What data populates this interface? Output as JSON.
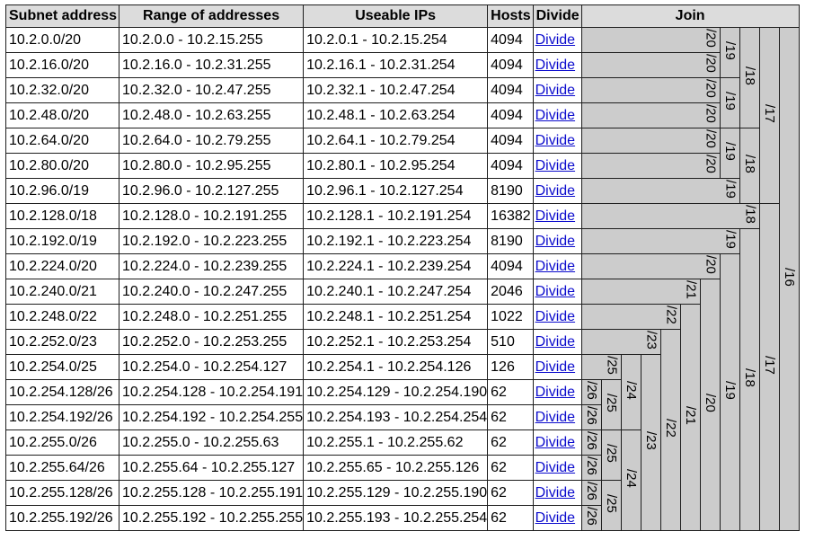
{
  "headers": {
    "subnet": "Subnet address",
    "range": "Range of addresses",
    "usable": "Useable IPs",
    "hosts": "Hosts",
    "divide": "Divide",
    "join": "Join"
  },
  "divide_link_text": "Divide",
  "rows": [
    {
      "subnet": "10.2.0.0/20",
      "range": "10.2.0.0 - 10.2.15.255",
      "usable": "10.2.0.1 - 10.2.15.254",
      "hosts": "4094"
    },
    {
      "subnet": "10.2.16.0/20",
      "range": "10.2.16.0 - 10.2.31.255",
      "usable": "10.2.16.1 - 10.2.31.254",
      "hosts": "4094"
    },
    {
      "subnet": "10.2.32.0/20",
      "range": "10.2.32.0 - 10.2.47.255",
      "usable": "10.2.32.1 - 10.2.47.254",
      "hosts": "4094"
    },
    {
      "subnet": "10.2.48.0/20",
      "range": "10.2.48.0 - 10.2.63.255",
      "usable": "10.2.48.1 - 10.2.63.254",
      "hosts": "4094"
    },
    {
      "subnet": "10.2.64.0/20",
      "range": "10.2.64.0 - 10.2.79.255",
      "usable": "10.2.64.1 - 10.2.79.254",
      "hosts": "4094"
    },
    {
      "subnet": "10.2.80.0/20",
      "range": "10.2.80.0 - 10.2.95.255",
      "usable": "10.2.80.1 - 10.2.95.254",
      "hosts": "4094"
    },
    {
      "subnet": "10.2.96.0/19",
      "range": "10.2.96.0 - 10.2.127.255",
      "usable": "10.2.96.1 - 10.2.127.254",
      "hosts": "8190"
    },
    {
      "subnet": "10.2.128.0/18",
      "range": "10.2.128.0 - 10.2.191.255",
      "usable": "10.2.128.1 - 10.2.191.254",
      "hosts": "16382"
    },
    {
      "subnet": "10.2.192.0/19",
      "range": "10.2.192.0 - 10.2.223.255",
      "usable": "10.2.192.1 - 10.2.223.254",
      "hosts": "8190"
    },
    {
      "subnet": "10.2.224.0/20",
      "range": "10.2.224.0 - 10.2.239.255",
      "usable": "10.2.224.1 - 10.2.239.254",
      "hosts": "4094"
    },
    {
      "subnet": "10.2.240.0/21",
      "range": "10.2.240.0 - 10.2.247.255",
      "usable": "10.2.240.1 - 10.2.247.254",
      "hosts": "2046"
    },
    {
      "subnet": "10.2.248.0/22",
      "range": "10.2.248.0 - 10.2.251.255",
      "usable": "10.2.248.1 - 10.2.251.254",
      "hosts": "1022"
    },
    {
      "subnet": "10.2.252.0/23",
      "range": "10.2.252.0 - 10.2.253.255",
      "usable": "10.2.252.1 - 10.2.253.254",
      "hosts": "510"
    },
    {
      "subnet": "10.2.254.0/25",
      "range": "10.2.254.0 - 10.2.254.127",
      "usable": "10.2.254.1 - 10.2.254.126",
      "hosts": "126"
    },
    {
      "subnet": "10.2.254.128/26",
      "range": "10.2.254.128 - 10.2.254.191",
      "usable": "10.2.254.129 - 10.2.254.190",
      "hosts": "62"
    },
    {
      "subnet": "10.2.254.192/26",
      "range": "10.2.254.192 - 10.2.254.255",
      "usable": "10.2.254.193 - 10.2.254.254",
      "hosts": "62"
    },
    {
      "subnet": "10.2.255.0/26",
      "range": "10.2.255.0 - 10.2.255.63",
      "usable": "10.2.255.1 - 10.2.255.62",
      "hosts": "62"
    },
    {
      "subnet": "10.2.255.64/26",
      "range": "10.2.255.64 - 10.2.255.127",
      "usable": "10.2.255.65 - 10.2.255.126",
      "hosts": "62"
    },
    {
      "subnet": "10.2.255.128/26",
      "range": "10.2.255.128 - 10.2.255.191",
      "usable": "10.2.255.129 - 10.2.255.190",
      "hosts": "62"
    },
    {
      "subnet": "10.2.255.192/26",
      "range": "10.2.255.192 - 10.2.255.255",
      "usable": "10.2.255.193 - 10.2.255.254",
      "hosts": "62"
    }
  ],
  "join_cells": [
    [
      {
        "label": "/20",
        "rowspan": 1,
        "colspan": 7
      },
      {
        "label": "/19",
        "rowspan": 2,
        "colspan": 1
      },
      {
        "label": "/18",
        "rowspan": 4,
        "colspan": 1
      },
      {
        "label": "/17",
        "rowspan": 7,
        "colspan": 1
      },
      {
        "label": "/16",
        "rowspan": 20,
        "colspan": 1
      }
    ],
    [
      {
        "label": "/20",
        "rowspan": 1,
        "colspan": 7
      }
    ],
    [
      {
        "label": "/20",
        "rowspan": 1,
        "colspan": 7
      },
      {
        "label": "/19",
        "rowspan": 2,
        "colspan": 1
      }
    ],
    [
      {
        "label": "/20",
        "rowspan": 1,
        "colspan": 7
      }
    ],
    [
      {
        "label": "/20",
        "rowspan": 1,
        "colspan": 7
      },
      {
        "label": "/19",
        "rowspan": 2,
        "colspan": 1
      },
      {
        "label": "/18",
        "rowspan": 3,
        "colspan": 1
      }
    ],
    [
      {
        "label": "/20",
        "rowspan": 1,
        "colspan": 7
      }
    ],
    [
      {
        "label": "/19",
        "rowspan": 1,
        "colspan": 8
      }
    ],
    [
      {
        "label": "/18",
        "rowspan": 1,
        "colspan": 9
      },
      {
        "label": "/17",
        "rowspan": 13,
        "colspan": 1
      }
    ],
    [
      {
        "label": "/19",
        "rowspan": 1,
        "colspan": 8
      },
      {
        "label": "/18",
        "rowspan": 12,
        "colspan": 1
      }
    ],
    [
      {
        "label": "/20",
        "rowspan": 1,
        "colspan": 7
      },
      {
        "label": "/19",
        "rowspan": 11,
        "colspan": 1
      }
    ],
    [
      {
        "label": "/21",
        "rowspan": 1,
        "colspan": 6
      },
      {
        "label": "/20",
        "rowspan": 10,
        "colspan": 1
      }
    ],
    [
      {
        "label": "/22",
        "rowspan": 1,
        "colspan": 5
      },
      {
        "label": "/21",
        "rowspan": 9,
        "colspan": 1
      }
    ],
    [
      {
        "label": "/23",
        "rowspan": 1,
        "colspan": 4
      },
      {
        "label": "/22",
        "rowspan": 8,
        "colspan": 1
      }
    ],
    [
      {
        "label": "/25",
        "rowspan": 1,
        "colspan": 2
      },
      {
        "label": "/24",
        "rowspan": 3,
        "colspan": 1
      },
      {
        "label": "/23",
        "rowspan": 7,
        "colspan": 1
      }
    ],
    [
      {
        "label": "/26",
        "rowspan": 1,
        "colspan": 1
      },
      {
        "label": "/25",
        "rowspan": 2,
        "colspan": 1
      }
    ],
    [
      {
        "label": "/26",
        "rowspan": 1,
        "colspan": 1
      }
    ],
    [
      {
        "label": "/26",
        "rowspan": 1,
        "colspan": 1
      },
      {
        "label": "/25",
        "rowspan": 2,
        "colspan": 1
      },
      {
        "label": "/24",
        "rowspan": 4,
        "colspan": 1
      }
    ],
    [
      {
        "label": "/26",
        "rowspan": 1,
        "colspan": 1
      }
    ],
    [
      {
        "label": "/26",
        "rowspan": 1,
        "colspan": 1
      },
      {
        "label": "/25",
        "rowspan": 2,
        "colspan": 1
      }
    ],
    [
      {
        "label": "/26",
        "rowspan": 1,
        "colspan": 1
      }
    ]
  ],
  "colors": {
    "header_bg": "#dcdcdc",
    "join_bg": "#cccccc",
    "border": "#1e1e1e",
    "link": "#0a0acd"
  }
}
